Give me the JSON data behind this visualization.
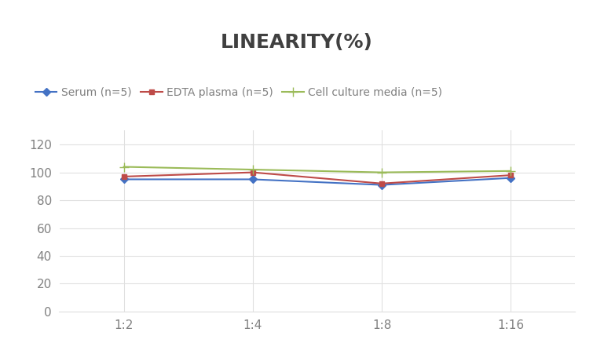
{
  "title": "LINEARITY(%)",
  "title_fontsize": 18,
  "title_fontweight": "bold",
  "title_color": "#404040",
  "x_labels": [
    "1:2",
    "1:4",
    "1:8",
    "1:16"
  ],
  "x_positions": [
    0,
    1,
    2,
    3
  ],
  "series": [
    {
      "label": "Serum (n=5)",
      "values": [
        95,
        95,
        91,
        96
      ],
      "color": "#4472C4",
      "marker": "D",
      "markersize": 5,
      "linewidth": 1.5
    },
    {
      "label": "EDTA plasma (n=5)",
      "values": [
        97,
        100,
        92,
        98
      ],
      "color": "#BE4B48",
      "marker": "s",
      "markersize": 5,
      "linewidth": 1.5
    },
    {
      "label": "Cell culture media (n=5)",
      "values": [
        104,
        102,
        100,
        101
      ],
      "color": "#9BBB59",
      "marker": "+",
      "markersize": 8,
      "linewidth": 1.5
    }
  ],
  "ylim": [
    0,
    130
  ],
  "yticks": [
    0,
    20,
    40,
    60,
    80,
    100,
    120
  ],
  "grid_color": "#E0E0E0",
  "background_color": "#FFFFFF",
  "legend_fontsize": 10,
  "tick_fontsize": 11,
  "tick_color": "#808080"
}
